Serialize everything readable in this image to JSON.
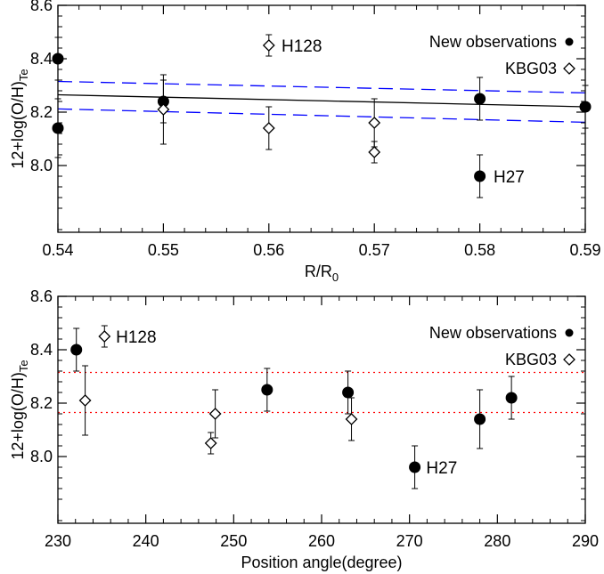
{
  "chart_data": [
    {
      "type": "scatter",
      "xlabel": "R/R",
      "xlabel_sub": "0",
      "ylabel": "12+log(O/H)",
      "ylabel_sub": "Te",
      "xlim": [
        0.54,
        0.59
      ],
      "ylim": [
        7.75,
        8.6
      ],
      "xticks": [
        0.54,
        0.55,
        0.56,
        0.57,
        0.58,
        0.59
      ],
      "xtick_labels": [
        "0.54",
        "0.55",
        "0.56",
        "0.57",
        "0.58",
        "0.59"
      ],
      "yticks": [
        8.0,
        8.2,
        8.4,
        8.6
      ],
      "ytick_labels": [
        "8.0",
        "8.2",
        "8.4",
        "8.6"
      ],
      "legend_position": "top-right",
      "series": [
        {
          "name": "New observations",
          "marker": "filled-circle",
          "points": [
            {
              "x": 0.54,
              "y": 8.4,
              "err": 0.08
            },
            {
              "x": 0.54,
              "y": 8.14,
              "err": 0.11
            },
            {
              "x": 0.55,
              "y": 8.24,
              "err": 0.08
            },
            {
              "x": 0.58,
              "y": 8.25,
              "err": 0.08
            },
            {
              "x": 0.58,
              "y": 7.96,
              "err": 0.08
            },
            {
              "x": 0.59,
              "y": 8.22,
              "err": 0.08
            }
          ]
        },
        {
          "name": "KBG03",
          "marker": "open-diamond",
          "points": [
            {
              "x": 0.55,
              "y": 8.21,
              "err": 0.13
            },
            {
              "x": 0.56,
              "y": 8.45,
              "err": 0.04
            },
            {
              "x": 0.56,
              "y": 8.14,
              "err": 0.08
            },
            {
              "x": 0.57,
              "y": 8.16,
              "err": 0.09
            },
            {
              "x": 0.57,
              "y": 8.05,
              "err": 0.04
            }
          ]
        }
      ],
      "lines": [
        {
          "style": "solid",
          "color": "#000000",
          "points": [
            [
              0.54,
              8.265
            ],
            [
              0.59,
              8.22
            ]
          ]
        },
        {
          "style": "dashed",
          "color": "#0000ff",
          "points": [
            [
              0.54,
              8.315
            ],
            [
              0.59,
              8.272
            ]
          ]
        },
        {
          "style": "dashed",
          "color": "#0000ff",
          "points": [
            [
              0.54,
              8.212
            ],
            [
              0.59,
              8.162
            ]
          ]
        }
      ],
      "annotations": [
        {
          "text": "H128",
          "x": 0.5612,
          "y": 8.45
        },
        {
          "text": "H27",
          "x": 0.5813,
          "y": 7.96
        }
      ]
    },
    {
      "type": "scatter",
      "xlabel": "Position angle(degree)",
      "xlabel_sub": "",
      "ylabel": "12+log(O/H)",
      "ylabel_sub": "Te",
      "xlim": [
        230,
        290
      ],
      "ylim": [
        7.75,
        8.6
      ],
      "xticks": [
        230,
        240,
        250,
        260,
        270,
        280,
        290
      ],
      "xtick_labels": [
        "230",
        "240",
        "250",
        "260",
        "270",
        "280",
        "290"
      ],
      "yticks": [
        8.0,
        8.2,
        8.4,
        8.6
      ],
      "ytick_labels": [
        "8.0",
        "8.2",
        "8.4",
        "8.6"
      ],
      "legend_position": "top-right",
      "series": [
        {
          "name": "New observations",
          "marker": "filled-circle",
          "points": [
            {
              "x": 232.1,
              "y": 8.4,
              "err": 0.08
            },
            {
              "x": 253.8,
              "y": 8.25,
              "err": 0.08
            },
            {
              "x": 263.0,
              "y": 8.24,
              "err": 0.08
            },
            {
              "x": 270.6,
              "y": 7.96,
              "err": 0.08
            },
            {
              "x": 278.0,
              "y": 8.14,
              "err": 0.11
            },
            {
              "x": 281.6,
              "y": 8.22,
              "err": 0.08
            }
          ]
        },
        {
          "name": "KBG03",
          "marker": "open-diamond",
          "points": [
            {
              "x": 233.1,
              "y": 8.21,
              "err": 0.13
            },
            {
              "x": 235.3,
              "y": 8.45,
              "err": 0.04
            },
            {
              "x": 247.4,
              "y": 8.05,
              "err": 0.04
            },
            {
              "x": 247.9,
              "y": 8.16,
              "err": 0.09
            },
            {
              "x": 263.4,
              "y": 8.14,
              "err": 0.08
            }
          ]
        }
      ],
      "lines": [
        {
          "style": "dotted",
          "color": "#ff0000",
          "points": [
            [
              230,
              8.315
            ],
            [
              290,
              8.315
            ]
          ]
        },
        {
          "style": "dotted",
          "color": "#ff0000",
          "points": [
            [
              230,
              8.165
            ],
            [
              290,
              8.165
            ]
          ]
        }
      ],
      "annotations": [
        {
          "text": "H128",
          "x": 236.6,
          "y": 8.45
        },
        {
          "text": "H27",
          "x": 271.9,
          "y": 7.96
        }
      ]
    }
  ]
}
